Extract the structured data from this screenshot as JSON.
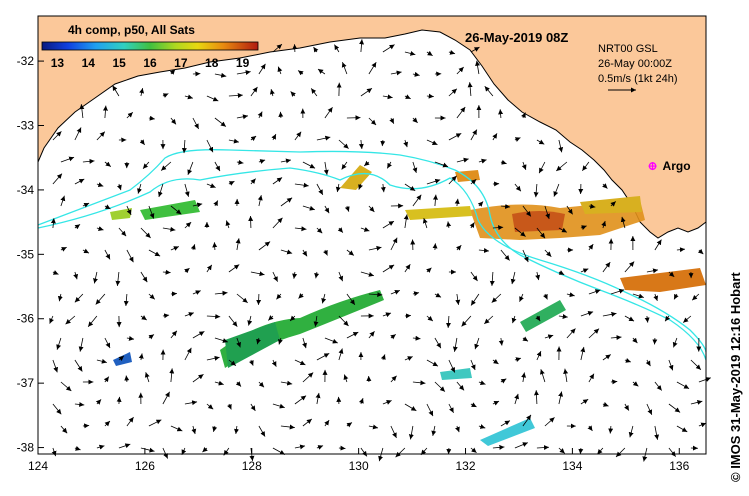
{
  "title": "26-May-2019 08Z",
  "composite_label": "4h comp, p50, All Sats",
  "colorbar": {
    "ticks": [
      "13",
      "14",
      "15",
      "16",
      "17",
      "18",
      "19"
    ],
    "min": 12.5,
    "max": 19.5
  },
  "current_legend": {
    "line1": "NRT00 GSL",
    "line2": "26-May 00:00Z",
    "line3": "0.5m/s (1kt 24h)"
  },
  "argo": {
    "label": "Argo",
    "lon": 135.5,
    "lat": -33.63
  },
  "side_credit": "© IMOS 31-May-2019 12:16 Hobart",
  "axes": {
    "x_ticks": [
      "124",
      "126",
      "128",
      "130",
      "132",
      "134",
      "136"
    ],
    "y_ticks": [
      "-32",
      "-33",
      "-34",
      "-35",
      "-36",
      "-37",
      "-38"
    ],
    "lon_range": [
      124,
      136.5
    ],
    "lat_range": [
      -31.3,
      -38.1
    ]
  },
  "colors": {
    "land": "#fbc89a",
    "contour": "#35e6e6",
    "argo": "#ff00ff"
  }
}
